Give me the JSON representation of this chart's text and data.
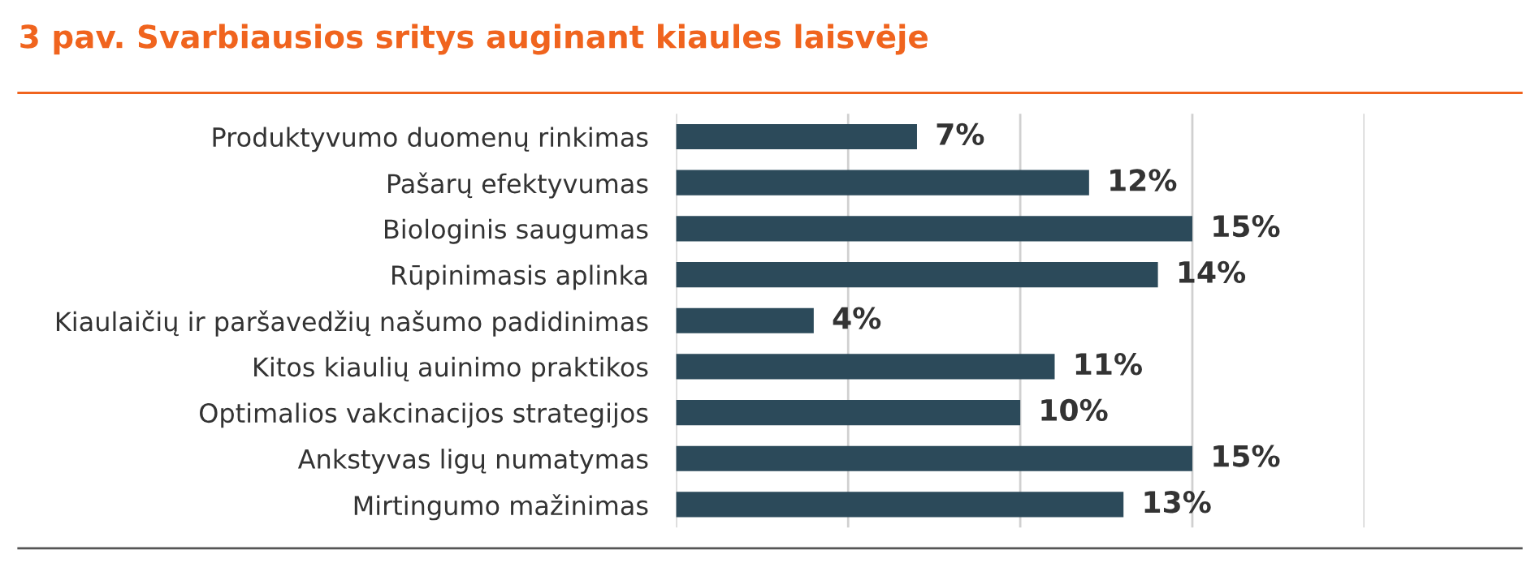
{
  "chart_data": {
    "type": "bar",
    "orientation": "horizontal",
    "title": "3 pav. Svarbiausios sritys auginant kiaules laisvėje",
    "categories": [
      "Produktyvumo duomenų rinkimas",
      "Pašarų efektyvumas",
      "Biologinis saugumas",
      "Rūpinimasis aplinka",
      "Kiaulaičių ir paršavedžių našumo padidinimas",
      "Kitos kiaulių auinimo praktikos",
      "Optimalios vakcinacijos strategijos",
      "Ankstyvas ligų numatymas",
      "Mirtingumo mažinimas"
    ],
    "values": [
      7,
      12,
      15,
      14,
      4,
      11,
      10,
      15,
      13
    ],
    "value_labels": [
      "7%",
      "12%",
      "15%",
      "14%",
      "4%",
      "11%",
      "10%",
      "15%",
      "13%"
    ],
    "color": "#2c4a5a",
    "xlim": [
      0,
      20
    ],
    "xticks": [
      {
        "value": 0,
        "label": null
      },
      {
        "value": 5,
        "label": null
      },
      {
        "value": 10,
        "label": null
      },
      {
        "value": 15,
        "label": null
      },
      {
        "value": 20,
        "label": null
      }
    ],
    "grid": "x",
    "tick_labels": "y"
  }
}
